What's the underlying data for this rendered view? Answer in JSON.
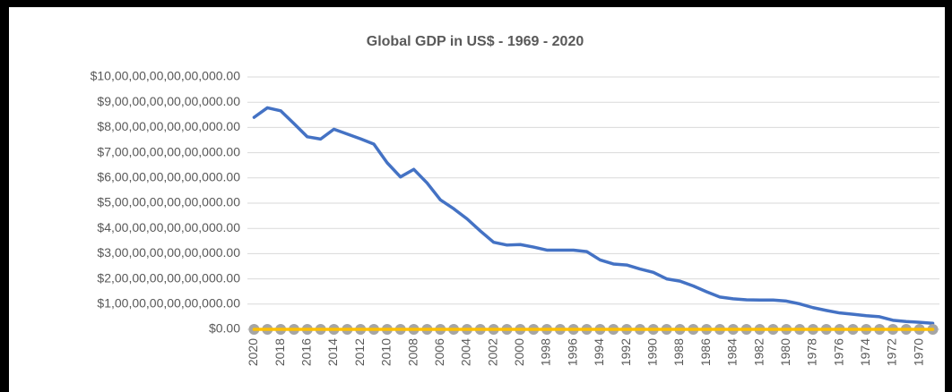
{
  "chart_data": {
    "type": "line",
    "title": "Global GDP in US$ - 1969 - 2020",
    "categories": [
      "2020",
      null,
      "2018",
      null,
      "2016",
      null,
      "2014",
      null,
      "2012",
      null,
      "2010",
      null,
      "2008",
      null,
      "2006",
      null,
      "2004",
      null,
      "2002",
      null,
      "2000",
      null,
      "1998",
      null,
      "1996",
      null,
      "1994",
      null,
      "1992",
      null,
      "1990",
      null,
      "1988",
      null,
      "1986",
      null,
      "1984",
      null,
      "1982",
      null,
      "1980",
      null,
      "1978",
      null,
      "1976",
      null,
      "1974",
      null,
      "1972",
      null,
      "1970",
      null
    ],
    "series": [
      {
        "color": "#4472c4",
        "values": [
          84000000000000,
          87800000000000,
          86600000000000,
          81500000000000,
          76300000000000,
          75400000000000,
          79300000000000,
          77400000000000,
          75500000000000,
          73400000000000,
          66000000000000,
          60400000000000,
          63400000000000,
          58000000000000,
          51300000000000,
          47800000000000,
          43800000000000,
          39000000000000,
          34500000000000,
          33400000000000,
          33600000000000,
          32600000000000,
          31400000000000,
          31400000000000,
          31400000000000,
          30800000000000,
          27500000000000,
          25900000000000,
          25500000000000,
          23900000000000,
          22600000000000,
          20000000000000,
          19100000000000,
          17200000000000,
          14900000000000,
          12800000000000,
          12100000000000,
          11700000000000,
          11600000000000,
          11600000000000,
          11200000000000,
          10100000000000,
          8600000000000,
          7500000000000,
          6500000000000,
          6000000000000,
          5400000000000,
          5000000000000,
          3600000000000,
          3100000000000,
          2800000000000,
          2400000000000
        ]
      },
      {
        "color": "#a5a5a5",
        "marker": true,
        "values": [
          0,
          0,
          0,
          0,
          0,
          0,
          0,
          0,
          0,
          0,
          0,
          0,
          0,
          0,
          0,
          0,
          0,
          0,
          0,
          0,
          0,
          0,
          0,
          0,
          0,
          0,
          0,
          0,
          0,
          0,
          0,
          0,
          0,
          0,
          0,
          0,
          0,
          0,
          0,
          0,
          0,
          0,
          0,
          0,
          0,
          0,
          0,
          0,
          0,
          0,
          0,
          0
        ]
      },
      {
        "color": "#ffc000",
        "values": [
          0,
          0,
          0,
          0,
          0,
          0,
          0,
          0,
          0,
          0,
          0,
          0,
          0,
          0,
          0,
          0,
          0,
          0,
          0,
          0,
          0,
          0,
          0,
          0,
          0,
          0,
          0,
          0,
          0,
          0,
          0,
          0,
          0,
          0,
          0,
          0,
          0,
          0,
          0,
          0,
          0,
          0,
          0,
          0,
          0,
          0,
          0,
          0,
          0,
          0,
          0,
          0
        ]
      }
    ],
    "ylim": [
      0,
      100000000000000
    ],
    "yticks": [
      {
        "value": 0,
        "label": "$0.00"
      },
      {
        "value": 10000000000000,
        "label": "$1,00,00,00,00,00,000.00"
      },
      {
        "value": 20000000000000,
        "label": "$2,00,00,00,00,00,000.00"
      },
      {
        "value": 30000000000000,
        "label": "$3,00,00,00,00,00,000.00"
      },
      {
        "value": 40000000000000,
        "label": "$4,00,00,00,00,00,000.00"
      },
      {
        "value": 50000000000000,
        "label": "$5,00,00,00,00,00,000.00"
      },
      {
        "value": 60000000000000,
        "label": "$6,00,00,00,00,00,000.00"
      },
      {
        "value": 70000000000000,
        "label": "$7,00,00,00,00,00,000.00"
      },
      {
        "value": 80000000000000,
        "label": "$8,00,00,00,00,00,000.00"
      },
      {
        "value": 90000000000000,
        "label": "$9,00,00,00,00,00,000.00"
      },
      {
        "value": 100000000000000,
        "label": "$10,00,00,00,00,00,000.00"
      }
    ],
    "grid": true
  }
}
